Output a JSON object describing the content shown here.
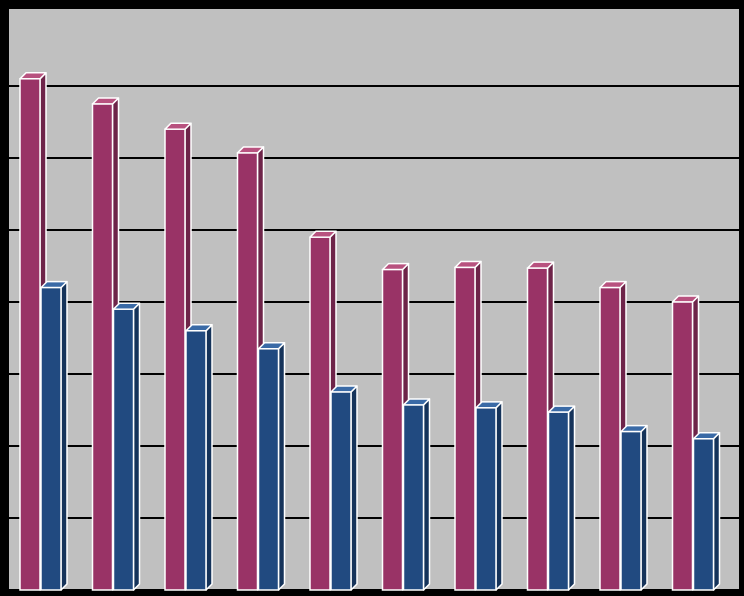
{
  "chart_data": {
    "type": "bar",
    "subtype": "3d-clustered-column",
    "title": "",
    "xlabel": "",
    "ylabel": "",
    "categories": [
      "",
      "",
      "",
      "",
      "",
      "",
      "",
      "",
      "",
      ""
    ],
    "series": [
      {
        "values": [
          7.1,
          6.75,
          6.4,
          6.07,
          4.9,
          4.45,
          4.48,
          4.47,
          4.2,
          4.0
        ]
      },
      {
        "values": [
          4.2,
          3.9,
          3.6,
          3.35,
          2.75,
          2.57,
          2.53,
          2.47,
          2.2,
          2.1
        ]
      }
    ],
    "ylim": [
      0,
      7.1
    ],
    "y_gridline_step": 1,
    "grid": true,
    "legend": "none",
    "colors": {
      "figure_background": "#000000",
      "plot_background": "#c0c0c0",
      "gridline": "#000000",
      "series_0_face": "#993366",
      "series_0_side": "#6e2449",
      "series_0_top": "#b8527f",
      "series_1_face": "#214a80",
      "series_1_side": "#15335a",
      "series_1_top": "#3a6aa6",
      "bar_edge": "#ffffff"
    }
  }
}
